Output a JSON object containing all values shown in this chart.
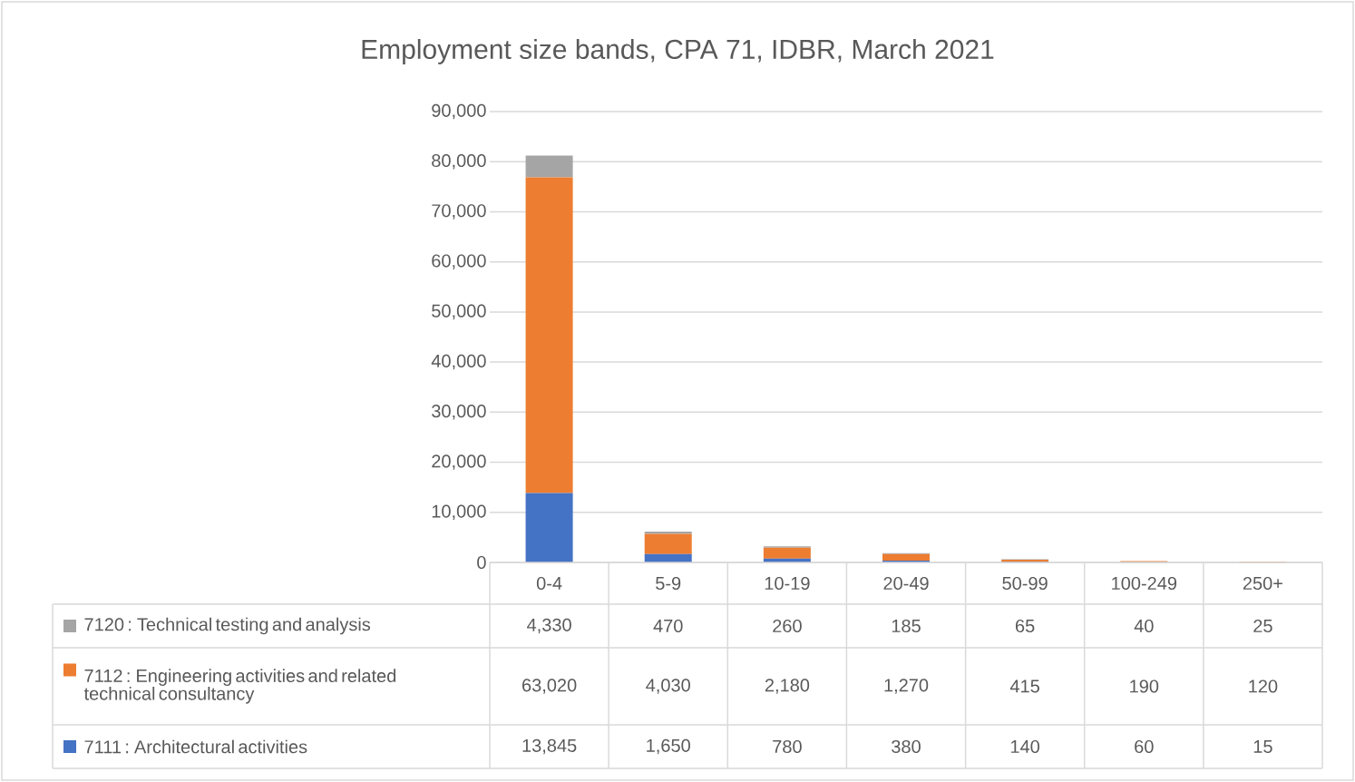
{
  "chart_data": {
    "type": "bar",
    "title": "Employment size bands, CPA 71, IDBR, March 2021",
    "categories": [
      "0-4",
      "5-9",
      "10-19",
      "20-49",
      "50-99",
      "100-249",
      "250+"
    ],
    "stacked": true,
    "series": [
      {
        "name": "7111 : Architectural activities",
        "color": "#4472c4",
        "values": [
          13845,
          1650,
          780,
          380,
          140,
          60,
          15
        ],
        "value_labels": [
          "13,845",
          "1,650",
          "780",
          "380",
          "140",
          "60",
          "15"
        ]
      },
      {
        "name": "7112 : Engineering activities and related technical consultancy",
        "color": "#ed7d31",
        "values": [
          63020,
          4030,
          2180,
          1270,
          415,
          190,
          120
        ],
        "value_labels": [
          "63,020",
          "4,030",
          "2,180",
          "1,270",
          "415",
          "190",
          "120"
        ]
      },
      {
        "name": "7120 : Technical testing and analysis",
        "color": "#a5a5a5",
        "values": [
          4330,
          470,
          260,
          185,
          65,
          40,
          25
        ],
        "value_labels": [
          "4,330",
          "470",
          "260",
          "185",
          "65",
          "40",
          "25"
        ]
      }
    ],
    "ylim": [
      0,
      90000
    ],
    "yticks": [
      0,
      {
        "value": 10000,
        "label": "10,000"
      },
      {
        "value": 20000,
        "label": "20,000"
      },
      {
        "value": 30000,
        "label": "30,000"
      },
      {
        "value": 40000,
        "label": "40,000"
      },
      {
        "value": 50000,
        "label": "50,000"
      },
      {
        "value": 60000,
        "label": "60,000"
      },
      {
        "value": 70000,
        "label": "70,000"
      },
      {
        "value": 80000,
        "label": "80,000"
      },
      {
        "value": 90000,
        "label": "90,000"
      }
    ],
    "grid": "y",
    "legend": "bottom"
  }
}
